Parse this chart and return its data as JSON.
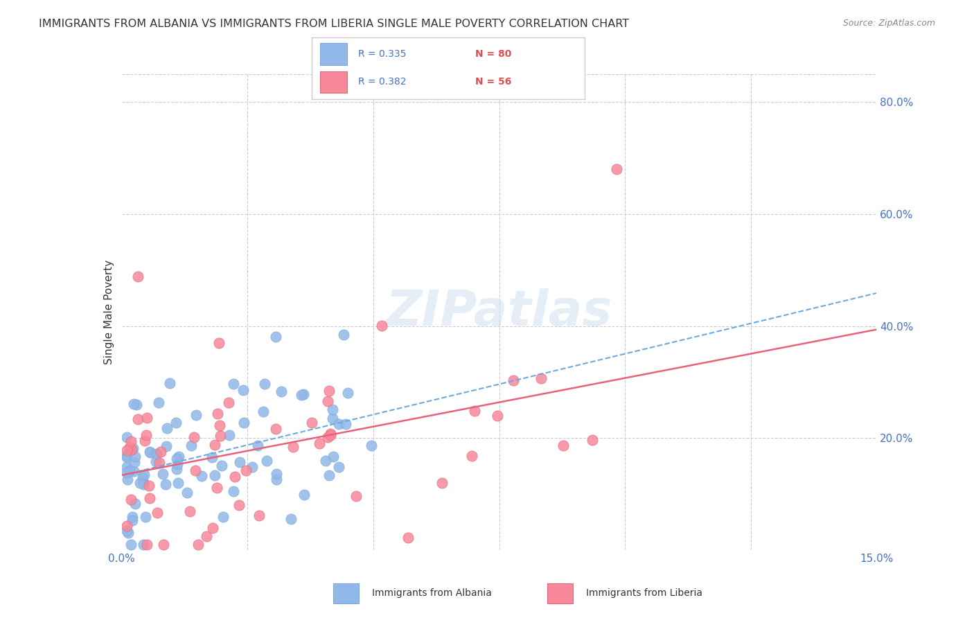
{
  "title": "IMMIGRANTS FROM ALBANIA VS IMMIGRANTS FROM LIBERIA SINGLE MALE POVERTY CORRELATION CHART",
  "source": "Source: ZipAtlas.com",
  "ylabel": "Single Male Poverty",
  "yticks": [
    "20.0%",
    "40.0%",
    "60.0%",
    "80.0%"
  ],
  "ytick_vals": [
    0.2,
    0.4,
    0.6,
    0.8
  ],
  "xlim": [
    0.0,
    0.15
  ],
  "ylim": [
    0.0,
    0.85
  ],
  "legend_r1": "R = 0.335",
  "legend_n1": "N = 80",
  "legend_r2": "R = 0.382",
  "legend_n2": "N = 56",
  "albania_color": "#91b8e8",
  "liberia_color": "#f7889a",
  "trendline_albania_color": "#6aaae0",
  "trendline_liberia_color": "#e8607a",
  "background_color": "#ffffff",
  "watermark": "ZIPatlas"
}
